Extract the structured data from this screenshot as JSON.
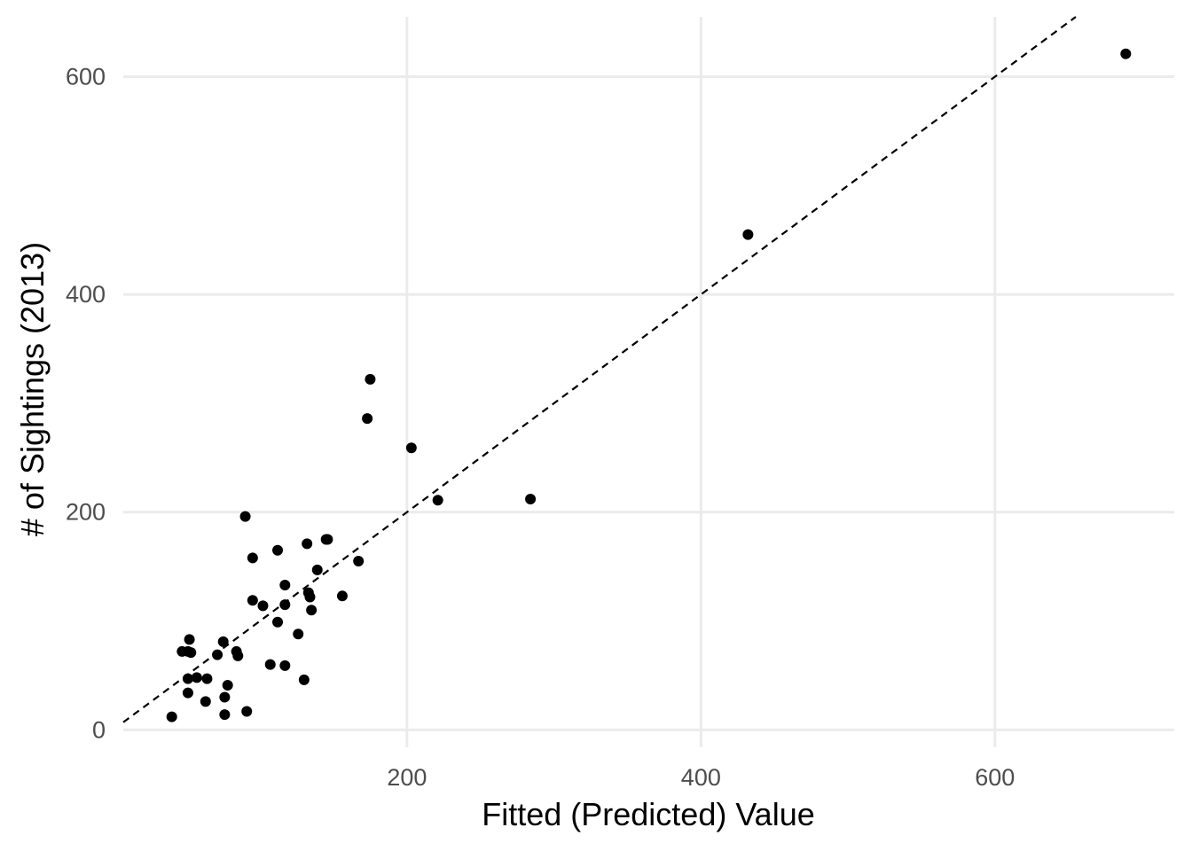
{
  "chart_data": {
    "type": "scatter",
    "title": "",
    "xlabel": "Fitted (Predicted) Value",
    "ylabel": "# of Sightings (2013)",
    "xlim": [
      7,
      722
    ],
    "ylim": [
      -16,
      655
    ],
    "x_ticks": [
      200,
      400,
      600
    ],
    "y_ticks": [
      0,
      200,
      400,
      600
    ],
    "grid": true,
    "legend": "none",
    "point_color": "#000000",
    "reference_line": {
      "type": "identity",
      "slope": 1,
      "intercept": 0,
      "style": "dashed",
      "color": "#000000"
    },
    "points": [
      [
        689,
        621
      ],
      [
        432,
        455
      ],
      [
        175,
        322
      ],
      [
        173,
        286
      ],
      [
        203,
        259
      ],
      [
        221,
        211
      ],
      [
        284,
        212
      ],
      [
        90,
        196
      ],
      [
        146,
        175
      ],
      [
        145,
        175
      ],
      [
        132,
        171
      ],
      [
        112,
        165
      ],
      [
        167,
        155
      ],
      [
        95,
        158
      ],
      [
        139,
        147
      ],
      [
        117,
        133
      ],
      [
        133,
        126
      ],
      [
        134,
        122
      ],
      [
        156,
        123
      ],
      [
        95,
        119
      ],
      [
        117,
        115
      ],
      [
        102,
        114
      ],
      [
        135,
        110
      ],
      [
        112,
        99
      ],
      [
        126,
        88
      ],
      [
        52,
        83
      ],
      [
        75,
        81
      ],
      [
        47,
        72
      ],
      [
        51,
        72
      ],
      [
        53,
        71
      ],
      [
        84,
        72
      ],
      [
        71,
        69
      ],
      [
        85,
        68
      ],
      [
        107,
        60
      ],
      [
        117,
        59
      ],
      [
        57,
        48
      ],
      [
        51,
        47
      ],
      [
        64,
        47
      ],
      [
        130,
        46
      ],
      [
        78,
        41
      ],
      [
        51,
        34
      ],
      [
        76,
        30
      ],
      [
        63,
        26
      ],
      [
        91,
        17
      ],
      [
        76,
        14
      ],
      [
        40,
        12
      ]
    ]
  }
}
